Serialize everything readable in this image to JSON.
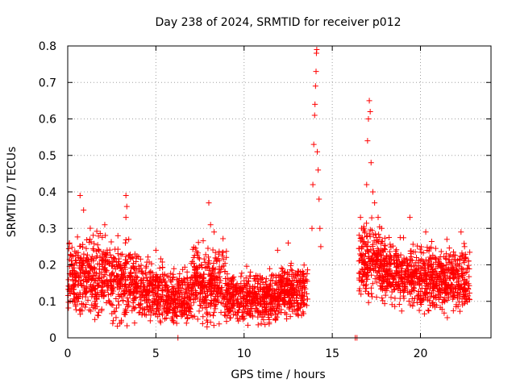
{
  "chart_data": {
    "type": "scatter",
    "title": "Day 238 of 2024, SRMTID for receiver p012",
    "xlabel": "GPS time / hours",
    "ylabel": "SRMTID / TECUs",
    "xlim": [
      0,
      24
    ],
    "ylim": [
      0,
      0.8
    ],
    "xticks": [
      0,
      5,
      10,
      15,
      20
    ],
    "xtick_labels": [
      "0",
      "5",
      "10",
      "15",
      "20"
    ],
    "yticks": [
      0,
      0.1,
      0.2,
      0.3,
      0.4,
      0.5,
      0.6,
      0.7,
      0.8
    ],
    "ytick_labels": [
      "0",
      "0.1",
      "0.2",
      "0.3",
      "0.4",
      "0.5",
      "0.6",
      "0.7",
      "0.8"
    ],
    "grid": true,
    "marker": "+",
    "color": "#ff0000",
    "series": [
      {
        "name": "SRMTID",
        "segments": [
          {
            "x_start": 0.0,
            "x_end": 0.8,
            "level": 0.16,
            "spread": 0.06
          },
          {
            "x_start": 0.8,
            "x_end": 2.5,
            "level": 0.17,
            "spread": 0.06
          },
          {
            "x_start": 2.5,
            "x_end": 4.0,
            "level": 0.15,
            "spread": 0.06
          },
          {
            "x_start": 4.0,
            "x_end": 5.5,
            "level": 0.13,
            "spread": 0.05
          },
          {
            "x_start": 5.5,
            "x_end": 7.0,
            "level": 0.11,
            "spread": 0.04
          },
          {
            "x_start": 7.0,
            "x_end": 9.0,
            "level": 0.15,
            "spread": 0.06
          },
          {
            "x_start": 9.0,
            "x_end": 12.0,
            "level": 0.11,
            "spread": 0.04
          },
          {
            "x_start": 12.0,
            "x_end": 13.6,
            "level": 0.13,
            "spread": 0.04
          },
          {
            "x_start": 16.5,
            "x_end": 17.8,
            "level": 0.21,
            "spread": 0.06
          },
          {
            "x_start": 17.8,
            "x_end": 19.5,
            "level": 0.18,
            "spread": 0.05
          },
          {
            "x_start": 19.5,
            "x_end": 22.8,
            "level": 0.16,
            "spread": 0.05
          }
        ],
        "peaks": [
          {
            "x": 0.1,
            "y": 0.26
          },
          {
            "x": 0.7,
            "y": 0.39
          },
          {
            "x": 0.9,
            "y": 0.35
          },
          {
            "x": 2.1,
            "y": 0.31
          },
          {
            "x": 3.3,
            "y": 0.39
          },
          {
            "x": 3.35,
            "y": 0.36
          },
          {
            "x": 3.3,
            "y": 0.33
          },
          {
            "x": 5.0,
            "y": 0.24
          },
          {
            "x": 8.0,
            "y": 0.37
          },
          {
            "x": 8.1,
            "y": 0.31
          },
          {
            "x": 8.3,
            "y": 0.29
          },
          {
            "x": 7.9,
            "y": 0.03
          },
          {
            "x": 11.9,
            "y": 0.24
          },
          {
            "x": 12.5,
            "y": 0.26
          },
          {
            "x": 13.85,
            "y": 0.3
          },
          {
            "x": 13.9,
            "y": 0.42
          },
          {
            "x": 13.95,
            "y": 0.53
          },
          {
            "x": 14.0,
            "y": 0.61
          },
          {
            "x": 14.02,
            "y": 0.64
          },
          {
            "x": 14.05,
            "y": 0.69
          },
          {
            "x": 14.08,
            "y": 0.73
          },
          {
            "x": 14.1,
            "y": 0.78
          },
          {
            "x": 14.12,
            "y": 0.79
          },
          {
            "x": 14.15,
            "y": 0.51
          },
          {
            "x": 14.2,
            "y": 0.46
          },
          {
            "x": 14.25,
            "y": 0.38
          },
          {
            "x": 14.3,
            "y": 0.3
          },
          {
            "x": 14.35,
            "y": 0.25
          },
          {
            "x": 16.6,
            "y": 0.33
          },
          {
            "x": 16.8,
            "y": 0.3
          },
          {
            "x": 16.95,
            "y": 0.42
          },
          {
            "x": 17.0,
            "y": 0.54
          },
          {
            "x": 17.05,
            "y": 0.6
          },
          {
            "x": 17.1,
            "y": 0.65
          },
          {
            "x": 17.15,
            "y": 0.62
          },
          {
            "x": 17.2,
            "y": 0.48
          },
          {
            "x": 17.3,
            "y": 0.4
          },
          {
            "x": 17.4,
            "y": 0.37
          },
          {
            "x": 17.6,
            "y": 0.33
          },
          {
            "x": 17.8,
            "y": 0.3
          },
          {
            "x": 19.4,
            "y": 0.33
          },
          {
            "x": 20.3,
            "y": 0.29
          },
          {
            "x": 21.5,
            "y": 0.27
          },
          {
            "x": 22.3,
            "y": 0.29
          },
          {
            "x": 22.5,
            "y": 0.25
          },
          {
            "x": 6.25,
            "y": 0.0
          },
          {
            "x": 16.3,
            "y": 0.0
          },
          {
            "x": 16.4,
            "y": 0.0
          }
        ]
      }
    ]
  }
}
